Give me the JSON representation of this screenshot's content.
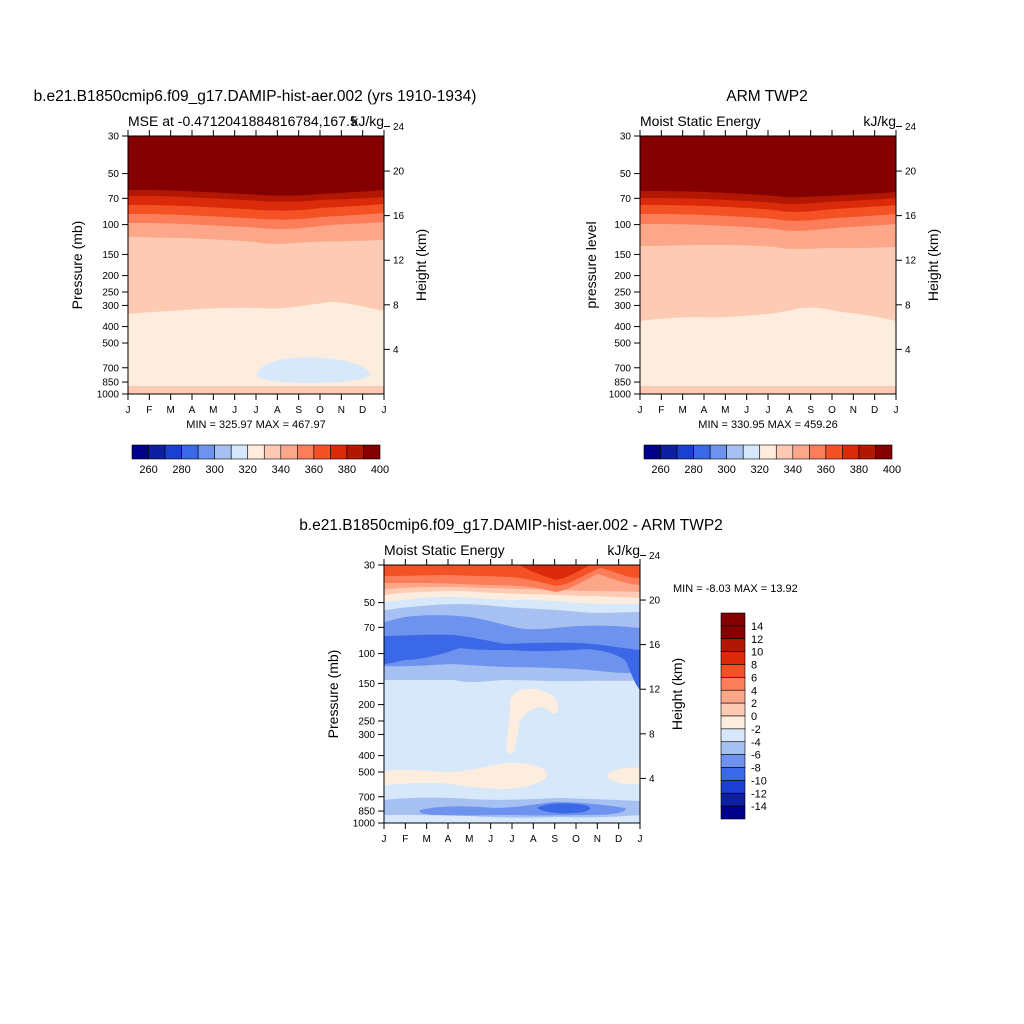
{
  "months": [
    "J",
    "F",
    "M",
    "A",
    "M",
    "J",
    "J",
    "A",
    "S",
    "O",
    "N",
    "D",
    "J"
  ],
  "pressure_ticks": [
    "30",
    "50",
    "70",
    "100",
    "150",
    "200",
    "250",
    "300",
    "400",
    "500",
    "700",
    "850",
    "1000"
  ],
  "height_ticks": [
    "24",
    "20",
    "16",
    "12",
    "8",
    "4"
  ],
  "colors": {
    "mse_scale": [
      "#00008b",
      "#0d1f9e",
      "#1a3fd1",
      "#3a68e6",
      "#6d93ee",
      "#a6c0f2",
      "#d7e8fa",
      "#fdeddf",
      "#fdcab4",
      "#fca789",
      "#fb7d5a",
      "#f45124",
      "#db2a09",
      "#b21703",
      "#850000"
    ],
    "diff_scale": [
      "#00008b",
      "#0d1f9e",
      "#1a3fd1",
      "#3a68e6",
      "#6d93ee",
      "#a6c0f2",
      "#d7e8fa",
      "#fdeddf",
      "#fdcab4",
      "#fca789",
      "#fb7d5a",
      "#f45124",
      "#db2a09",
      "#b21703",
      "#850000"
    ]
  },
  "panel1": {
    "title": "b.e21.B1850cmip6.f09_g17.DAMIP-hist-aer.002 (yrs 1910-1934)",
    "subtitle_left": "MSE at -0.4712041884816784,167.5",
    "subtitle_right": "kJ/kg",
    "ylabel": "Pressure (mb)",
    "ylabel_right": "Height (km)",
    "minmax": "MIN = 325.97 MAX = 467.97"
  },
  "panel2": {
    "title": "ARM TWP2",
    "subtitle_left": "Moist Static Energy",
    "subtitle_right": "kJ/kg",
    "ylabel": "pressure level",
    "ylabel_right": "Height (km)",
    "minmax": "MIN = 330.95 MAX = 459.26"
  },
  "panel3": {
    "title": "b.e21.B1850cmip6.f09_g17.DAMIP-hist-aer.002 - ARM TWP2",
    "subtitle_left": "Moist Static Energy",
    "subtitle_right": "kJ/kg",
    "ylabel": "Pressure (mb)",
    "ylabel_right": "Height (km)",
    "minmax": "MIN =  -8.03 MAX =  13.92"
  },
  "colorbar_mse": {
    "labels": [
      "260",
      "280",
      "300",
      "320",
      "340",
      "360",
      "380",
      "400"
    ]
  },
  "colorbar_diff": {
    "labels": [
      "14",
      "12",
      "10",
      "8",
      "6",
      "4",
      "2",
      "0",
      "-2",
      "-4",
      "-6",
      "-8",
      "-10",
      "-12",
      "-14"
    ]
  },
  "chart_data": [
    {
      "type": "heatmap",
      "title": "b.e21.B1850cmip6.f09_g17.DAMIP-hist-aer.002 (yrs 1910-1934)",
      "variable": "MSE",
      "units": "kJ/kg",
      "x": [
        "J",
        "F",
        "M",
        "A",
        "M",
        "J",
        "J",
        "A",
        "S",
        "O",
        "N",
        "D",
        "J"
      ],
      "y_pressure_mb": [
        30,
        50,
        70,
        100,
        150,
        200,
        250,
        300,
        400,
        500,
        700,
        850,
        1000
      ],
      "contour_levels": [
        250,
        260,
        270,
        280,
        290,
        300,
        310,
        320,
        330,
        340,
        350,
        360,
        370,
        380,
        390,
        400
      ],
      "bands_by_pressure": [
        {
          "p_top": 30,
          "p_bottom": 53,
          "value": 405
        },
        {
          "p_top": 53,
          "p_bottom": 60,
          "value": 395
        },
        {
          "p_top": 60,
          "p_bottom": 68,
          "value": 385
        },
        {
          "p_top": 68,
          "p_bottom": 78,
          "value": 375
        },
        {
          "p_top": 78,
          "p_bottom": 90,
          "value": 365
        },
        {
          "p_top": 90,
          "p_bottom": 115,
          "value": 355
        },
        {
          "p_top": 115,
          "p_bottom": 300,
          "value": 345
        },
        {
          "p_top": 300,
          "p_bottom": 960,
          "value": 335
        },
        {
          "p_top": 960,
          "p_bottom": 1000,
          "value": 345
        }
      ],
      "min": 325.97,
      "max": 467.97
    },
    {
      "type": "heatmap",
      "title": "ARM TWP2",
      "variable": "Moist Static Energy",
      "units": "kJ/kg",
      "x": [
        "J",
        "F",
        "M",
        "A",
        "M",
        "J",
        "J",
        "A",
        "S",
        "O",
        "N",
        "D",
        "J"
      ],
      "y_pressure_mb": [
        30,
        50,
        70,
        100,
        150,
        200,
        250,
        300,
        400,
        500,
        700,
        850,
        1000
      ],
      "contour_levels": [
        250,
        260,
        270,
        280,
        290,
        300,
        310,
        320,
        330,
        340,
        350,
        360,
        370,
        380,
        390,
        400
      ],
      "bands_by_pressure": [
        {
          "p_top": 30,
          "p_bottom": 52,
          "value": 405
        },
        {
          "p_top": 52,
          "p_bottom": 59,
          "value": 395
        },
        {
          "p_top": 59,
          "p_bottom": 67,
          "value": 385
        },
        {
          "p_top": 67,
          "p_bottom": 77,
          "value": 375
        },
        {
          "p_top": 77,
          "p_bottom": 90,
          "value": 365
        },
        {
          "p_top": 90,
          "p_bottom": 125,
          "value": 355
        },
        {
          "p_top": 125,
          "p_bottom": 340,
          "value": 345
        },
        {
          "p_top": 340,
          "p_bottom": 960,
          "value": 335
        },
        {
          "p_top": 960,
          "p_bottom": 1000,
          "value": 345
        }
      ],
      "min": 330.95,
      "max": 459.26
    },
    {
      "type": "heatmap",
      "title": "b.e21.B1850cmip6.f09_g17.DAMIP-hist-aer.002 - ARM TWP2",
      "variable": "Moist Static Energy",
      "units": "kJ/kg",
      "x": [
        "J",
        "F",
        "M",
        "A",
        "M",
        "J",
        "J",
        "A",
        "S",
        "O",
        "N",
        "D",
        "J"
      ],
      "y_pressure_mb": [
        30,
        50,
        70,
        100,
        150,
        200,
        250,
        300,
        400,
        500,
        700,
        850,
        1000
      ],
      "contour_levels": [
        -14,
        -12,
        -10,
        -8,
        -6,
        -4,
        -2,
        0,
        2,
        4,
        6,
        8,
        10,
        12,
        14
      ],
      "bands_by_pressure": [
        {
          "p_top": 30,
          "p_bottom": 35,
          "value": 11
        },
        {
          "p_top": 35,
          "p_bottom": 39,
          "value": 9
        },
        {
          "p_top": 39,
          "p_bottom": 43,
          "value": 5
        },
        {
          "p_top": 43,
          "p_bottom": 48,
          "value": 1
        },
        {
          "p_top": 48,
          "p_bottom": 55,
          "value": -3
        },
        {
          "p_top": 55,
          "p_bottom": 65,
          "value": -5
        },
        {
          "p_top": 65,
          "p_bottom": 85,
          "value": -7
        },
        {
          "p_top": 85,
          "p_bottom": 130,
          "value": -5
        },
        {
          "p_top": 130,
          "p_bottom": 780,
          "value": -1
        },
        {
          "p_top": 780,
          "p_bottom": 880,
          "value": -5
        },
        {
          "p_top": 880,
          "p_bottom": 1000,
          "value": -1
        }
      ],
      "min": -8.03,
      "max": 13.92
    }
  ]
}
